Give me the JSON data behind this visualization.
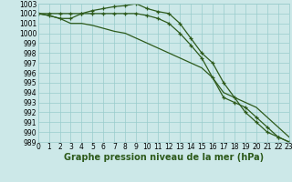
{
  "title": "Graphe pression niveau de la mer (hPa)",
  "x": [
    0,
    1,
    2,
    3,
    4,
    5,
    6,
    7,
    8,
    9,
    10,
    11,
    12,
    13,
    14,
    15,
    16,
    17,
    18,
    19,
    20,
    21,
    22,
    23
  ],
  "line1": [
    1002,
    1002,
    1002,
    1002,
    1002,
    1002.3,
    1002.5,
    1002.7,
    1002.8,
    1003,
    1002.5,
    1002.2,
    1002,
    1001,
    999.5,
    998,
    997,
    995,
    993.5,
    992,
    991,
    990,
    989.5,
    989
  ],
  "line2": [
    1002,
    1001.8,
    1001.5,
    1001.5,
    1002,
    1002,
    1002,
    1002,
    1002,
    1002,
    1001.8,
    1001.5,
    1001,
    1000,
    998.8,
    997.5,
    995.5,
    993.5,
    993,
    992.5,
    991.5,
    990.5,
    989.5,
    989
  ],
  "line3": [
    1002,
    1001.8,
    1001.5,
    1001,
    1001,
    1000.8,
    1000.5,
    1000.2,
    1000,
    999.5,
    999,
    998.5,
    998,
    997.5,
    997,
    996.5,
    995.5,
    994,
    993.5,
    993,
    992.5,
    991.5,
    990.5,
    989.5
  ],
  "ylim_min": 989,
  "ylim_max": 1003,
  "yticks": [
    989,
    990,
    991,
    992,
    993,
    994,
    995,
    996,
    997,
    998,
    999,
    1000,
    1001,
    1002,
    1003
  ],
  "line_color": "#2d5a1b",
  "bg_color": "#cce8e8",
  "grid_color": "#99cccc",
  "title_color": "#2d5a1b",
  "tick_fontsize": 5.5,
  "title_fontsize": 7.0
}
